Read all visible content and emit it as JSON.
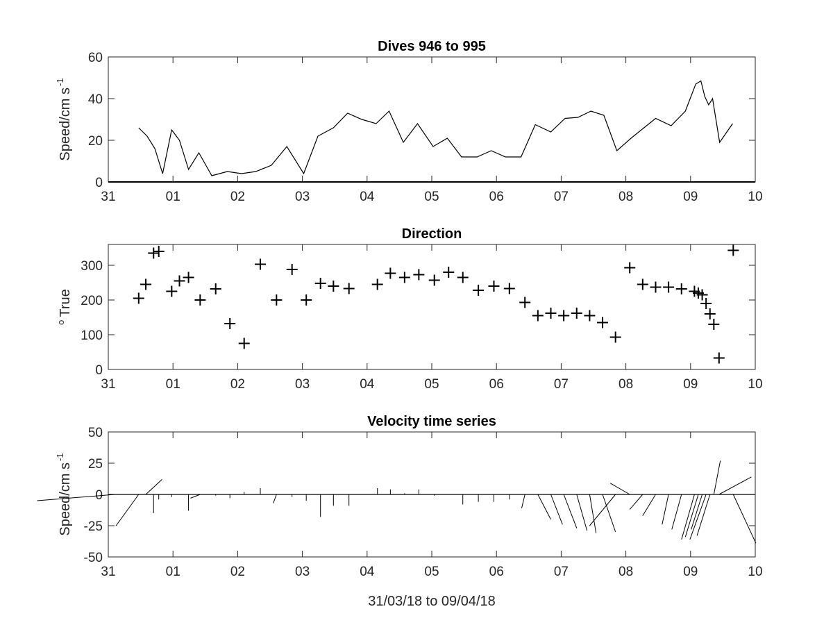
{
  "chart_data": [
    {
      "type": "line",
      "title": "Dives 946 to 995",
      "ylabel": "Speed/cm s",
      "ylabel_superscript": "-1",
      "xlim": [
        0,
        10
      ],
      "ylim": [
        0,
        60
      ],
      "x_ticks": [
        0,
        1,
        2,
        3,
        4,
        5,
        6,
        7,
        8,
        9,
        10
      ],
      "x_tick_labels": [
        "31",
        "01",
        "02",
        "03",
        "04",
        "05",
        "06",
        "07",
        "08",
        "09",
        "10"
      ],
      "y_ticks": [
        0,
        20,
        40,
        60
      ],
      "y_tick_labels": [
        "0",
        "20",
        "40",
        "60"
      ],
      "grid": false,
      "series": [
        {
          "x": [
            0.47,
            0.6,
            0.72,
            0.84,
            0.98,
            1.1,
            1.24,
            1.4,
            1.6,
            1.84,
            2.06,
            2.28,
            2.52,
            2.76,
            3.02,
            3.24,
            3.48,
            3.7,
            3.92,
            4.14,
            4.34,
            4.56,
            4.78,
            5.02,
            5.24,
            5.46,
            5.7,
            5.92,
            6.14,
            6.38,
            6.6,
            6.84,
            7.06,
            7.26,
            7.46,
            7.66,
            7.86,
            8.08,
            8.28,
            8.46,
            8.7,
            8.92,
            9.08,
            9.16,
            9.22,
            9.28,
            9.34,
            9.45,
            9.65
          ],
          "y": [
            26,
            22,
            16,
            4,
            25,
            20,
            6,
            14,
            3,
            5,
            4,
            5,
            8,
            17,
            4,
            22,
            26,
            33,
            30,
            28,
            34,
            19,
            28,
            17,
            21,
            12,
            12,
            15,
            12,
            12,
            27.5,
            24,
            30.5,
            31,
            34,
            32,
            15,
            21,
            26,
            30.5,
            27,
            34,
            47,
            48.5,
            41,
            37,
            40,
            19,
            28
          ]
        }
      ]
    },
    {
      "type": "scatter",
      "title": "Direction",
      "ylabel": "True",
      "ylabel_superscript": "o",
      "xlim": [
        0,
        10
      ],
      "ylim": [
        0,
        360
      ],
      "x_ticks": [
        0,
        1,
        2,
        3,
        4,
        5,
        6,
        7,
        8,
        9,
        10
      ],
      "x_tick_labels": [
        "31",
        "01",
        "02",
        "03",
        "04",
        "05",
        "06",
        "07",
        "08",
        "09",
        "10"
      ],
      "y_ticks": [
        0,
        100,
        200,
        300
      ],
      "y_tick_labels": [
        "0",
        "100",
        "200",
        "300"
      ],
      "grid": false,
      "series": [
        {
          "x": [
            0.47,
            0.58,
            0.7,
            0.78,
            0.98,
            1.1,
            1.24,
            1.42,
            1.66,
            1.88,
            2.1,
            2.35,
            2.6,
            2.84,
            3.06,
            3.28,
            3.48,
            3.72,
            4.16,
            4.36,
            4.58,
            4.8,
            5.04,
            5.26,
            5.48,
            5.72,
            5.96,
            6.2,
            6.44,
            6.64,
            6.84,
            7.04,
            7.24,
            7.44,
            7.64,
            7.84,
            8.06,
            8.26,
            8.46,
            8.66,
            8.86,
            9.06,
            9.12,
            9.18,
            9.24,
            9.3,
            9.36,
            9.44,
            9.66
          ],
          "y": [
            205,
            245,
            335,
            340,
            225,
            255,
            265,
            200,
            232,
            132,
            75,
            303,
            200,
            288,
            200,
            248,
            240,
            233,
            245,
            277,
            265,
            273,
            257,
            280,
            265,
            228,
            240,
            233,
            193,
            155,
            162,
            155,
            162,
            155,
            135,
            93,
            293,
            245,
            237,
            237,
            232,
            225,
            220,
            215,
            190,
            160,
            130,
            33,
            343
          ]
        }
      ]
    },
    {
      "type": "line",
      "title": "Velocity time series",
      "xlabel": "31/03/18 to 09/04/18",
      "ylabel": "Speed/cm s",
      "ylabel_superscript": "-1",
      "xlim": [
        0,
        10
      ],
      "ylim": [
        -50,
        50
      ],
      "x_ticks": [
        0,
        1,
        2,
        3,
        4,
        5,
        6,
        7,
        8,
        9,
        10
      ],
      "x_tick_labels": [
        "31",
        "01",
        "02",
        "03",
        "04",
        "05",
        "06",
        "07",
        "08",
        "09",
        "10"
      ],
      "y_ticks": [
        -50,
        -25,
        0,
        25,
        50
      ],
      "y_tick_labels": [
        "-50",
        "-25",
        "0",
        "25",
        "50"
      ],
      "grid": false,
      "note_vectors": "stick plot: each vector starts on the zero line at time x and is drawn with east component u and north component v",
      "vectors": {
        "x": [
          0.1,
          0.47,
          0.58,
          0.7,
          0.78,
          0.98,
          1.1,
          1.24,
          1.42,
          1.66,
          1.88,
          2.1,
          2.35,
          2.6,
          2.84,
          3.06,
          3.28,
          3.48,
          3.72,
          4.16,
          4.36,
          4.58,
          4.8,
          5.04,
          5.26,
          5.48,
          5.72,
          5.96,
          6.2,
          6.44,
          6.64,
          6.84,
          7.04,
          7.24,
          7.44,
          7.64,
          7.84,
          8.06,
          8.26,
          8.46,
          8.66,
          8.86,
          9.06,
          9.12,
          9.18,
          9.24,
          9.3,
          9.36,
          9.44,
          9.66
        ],
        "u": [
          -1.2,
          -0.35,
          0.25,
          0.0,
          0.0,
          0.0,
          -0.2,
          0.0,
          -0.15,
          0.0,
          0.0,
          0.0,
          0.0,
          -0.05,
          0.0,
          0.0,
          0.0,
          0.0,
          0.0,
          0.0,
          0.0,
          0.0,
          0.0,
          0.0,
          0.0,
          0.0,
          0.0,
          0.0,
          0.0,
          -0.05,
          0.2,
          0.18,
          0.2,
          0.16,
          0.1,
          0.2,
          -0.4,
          -0.3,
          -0.2,
          -0.2,
          -0.1,
          -0.15,
          -0.2,
          -0.2,
          -0.17,
          -0.25,
          -0.2,
          0.1,
          0.5,
          0.35
        ],
        "v": [
          -5,
          -25,
          12,
          -15,
          -4,
          -2,
          0,
          -13,
          -3,
          -1,
          -3,
          2,
          5,
          -7,
          -2,
          -5,
          -18,
          -9,
          -9,
          5,
          4,
          1,
          4,
          -1,
          0,
          -8,
          -6,
          -6,
          -4,
          -11,
          -20,
          -24,
          -27,
          -29,
          -31,
          -30,
          -25,
          9,
          -12,
          -17,
          -24,
          -28,
          -36,
          -34,
          -28,
          -36,
          -33,
          27,
          14,
          -39
        ]
      }
    }
  ]
}
